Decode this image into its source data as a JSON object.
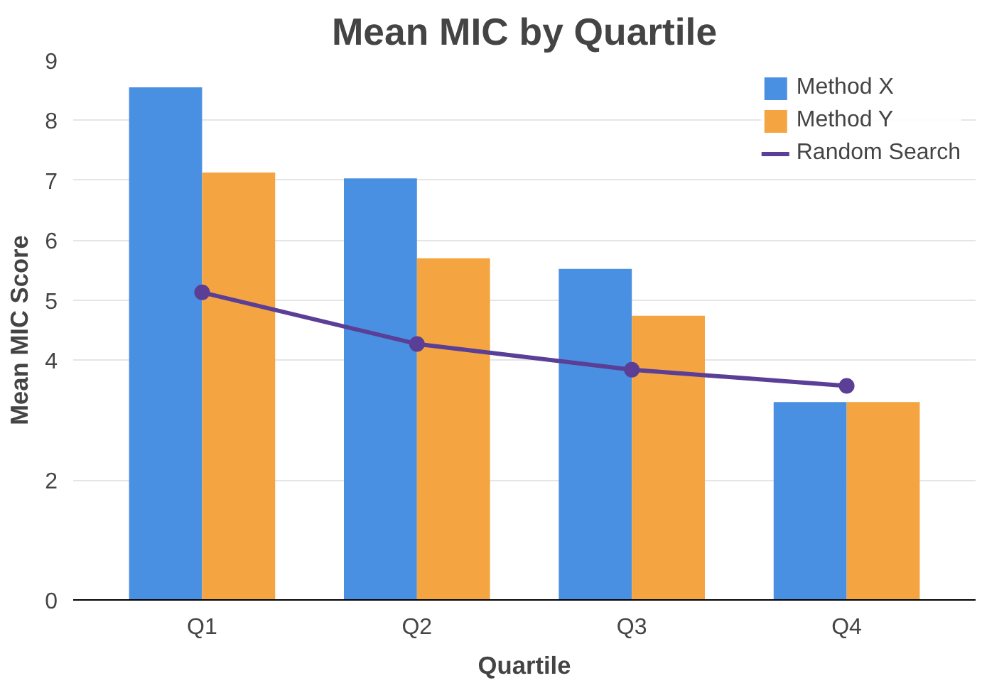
{
  "chart_data": {
    "type": "bar",
    "title": "Mean MIC by Quartile",
    "xlabel": "Quartile",
    "ylabel": "Mean MIC Score",
    "categories": [
      "Q1",
      "Q2",
      "Q3",
      "Q4"
    ],
    "series": [
      {
        "name": "Method X",
        "color": "#4a90e2",
        "values": [
          8.55,
          7.03,
          5.52,
          3.3
        ]
      },
      {
        "name": "Method Y",
        "color": "#f5a442",
        "values": [
          7.13,
          5.7,
          4.74,
          3.3
        ]
      },
      {
        "name": "Random Search",
        "type": "line",
        "color": "#5b3f96",
        "values": [
          5.13,
          4.27,
          3.84,
          3.57
        ],
        "marker": "circle"
      }
    ],
    "ylim": [
      0,
      9
    ],
    "yticks": [
      0,
      2,
      4,
      5,
      6,
      7,
      8,
      9
    ],
    "grid": "y",
    "legend": "top right"
  }
}
